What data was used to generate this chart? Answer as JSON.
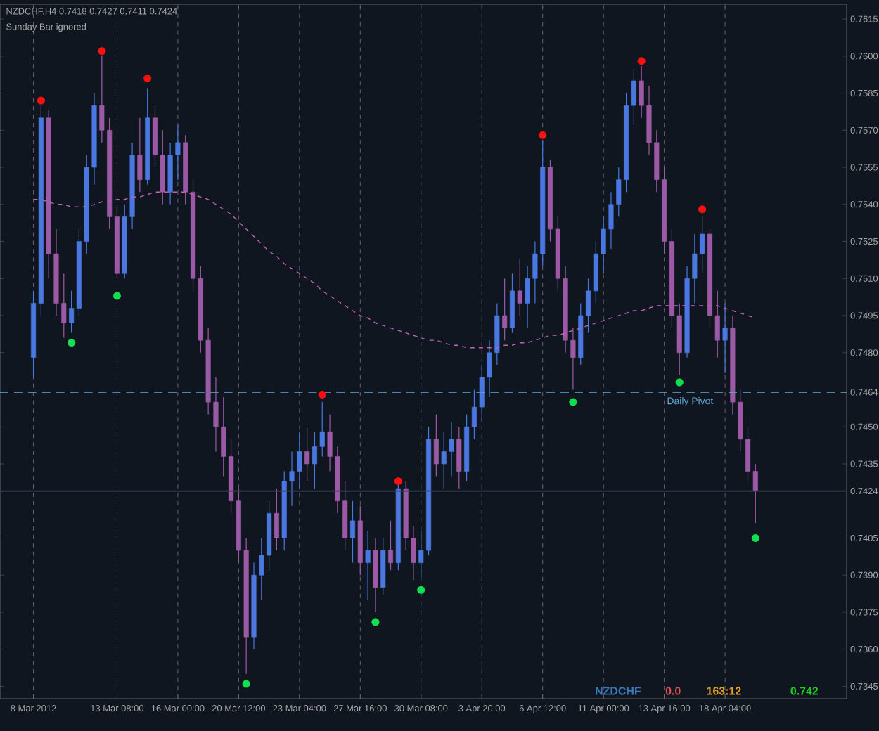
{
  "chart_data": {
    "type": "candlestick",
    "title": "NZDCHF,H4  0.7418 0.7427 0.7411 0.7424",
    "subtitle": "Sunday Bar ignored",
    "categories": [
      "8 Mar 2012",
      null,
      null,
      null,
      null,
      null,
      null,
      null,
      null,
      null,
      null,
      "13 Mar 08:00",
      null,
      null,
      null,
      null,
      null,
      null,
      null,
      "16 Mar 00:00",
      null,
      null,
      null,
      null,
      null,
      null,
      null,
      "20 Mar 12:00",
      null,
      null,
      null,
      null,
      null,
      null,
      null,
      "23 Mar 04:00",
      null,
      null,
      null,
      null,
      null,
      null,
      null,
      "27 Mar 16:00",
      null,
      null,
      null,
      null,
      null,
      null,
      null,
      "30 Mar 08:00",
      null,
      null,
      null,
      null,
      null,
      null,
      null,
      "3 Apr 20:00",
      null,
      null,
      null,
      null,
      null,
      null,
      null,
      "6 Apr 12:00",
      null,
      null,
      null,
      null,
      null,
      null,
      null,
      "11 Apr 00:00",
      null,
      null,
      null,
      null,
      null,
      null,
      null,
      "13 Apr 16:00",
      null,
      null,
      null,
      null,
      null,
      null,
      null,
      "18 Apr 04:00",
      null,
      null,
      null,
      null
    ],
    "ohlc": [
      [
        0.7478,
        0.7505,
        0.747,
        0.75
      ],
      [
        0.75,
        0.758,
        0.7495,
        0.7575
      ],
      [
        0.7575,
        0.7578,
        0.751,
        0.752
      ],
      [
        0.752,
        0.753,
        0.7495,
        0.75
      ],
      [
        0.75,
        0.7512,
        0.7486,
        0.7492
      ],
      [
        0.7492,
        0.7505,
        0.7488,
        0.7498
      ],
      [
        0.7498,
        0.753,
        0.7495,
        0.7525
      ],
      [
        0.7525,
        0.756,
        0.752,
        0.7555
      ],
      [
        0.7555,
        0.7585,
        0.7548,
        0.758
      ],
      [
        0.758,
        0.76,
        0.7565,
        0.757
      ],
      [
        0.757,
        0.7575,
        0.753,
        0.7535
      ],
      [
        0.7535,
        0.754,
        0.751,
        0.7512
      ],
      [
        0.7512,
        0.754,
        0.751,
        0.7535
      ],
      [
        0.7535,
        0.7565,
        0.753,
        0.756
      ],
      [
        0.756,
        0.7575,
        0.7545,
        0.755
      ],
      [
        0.755,
        0.7587,
        0.7548,
        0.7575
      ],
      [
        0.7575,
        0.758,
        0.7555,
        0.756
      ],
      [
        0.756,
        0.757,
        0.754,
        0.7545
      ],
      [
        0.7545,
        0.7565,
        0.754,
        0.756
      ],
      [
        0.756,
        0.7572,
        0.755,
        0.7565
      ],
      [
        0.7565,
        0.7568,
        0.754,
        0.7545
      ],
      [
        0.7545,
        0.755,
        0.7505,
        0.751
      ],
      [
        0.751,
        0.7515,
        0.748,
        0.7485
      ],
      [
        0.7485,
        0.749,
        0.7455,
        0.746
      ],
      [
        0.746,
        0.747,
        0.744,
        0.745
      ],
      [
        0.745,
        0.7462,
        0.743,
        0.7438
      ],
      [
        0.7438,
        0.7445,
        0.7415,
        0.742
      ],
      [
        0.742,
        0.7425,
        0.7395,
        0.74
      ],
      [
        0.74,
        0.7405,
        0.735,
        0.7365
      ],
      [
        0.7365,
        0.7395,
        0.736,
        0.739
      ],
      [
        0.739,
        0.7405,
        0.738,
        0.7398
      ],
      [
        0.7398,
        0.742,
        0.7392,
        0.7415
      ],
      [
        0.7415,
        0.7425,
        0.74,
        0.7405
      ],
      [
        0.7405,
        0.7432,
        0.74,
        0.7428
      ],
      [
        0.7428,
        0.744,
        0.7418,
        0.7432
      ],
      [
        0.7432,
        0.7448,
        0.7425,
        0.744
      ],
      [
        0.744,
        0.745,
        0.7428,
        0.7435
      ],
      [
        0.7435,
        0.7448,
        0.7425,
        0.7442
      ],
      [
        0.7442,
        0.746,
        0.7438,
        0.7448
      ],
      [
        0.7448,
        0.7455,
        0.7432,
        0.7438
      ],
      [
        0.7438,
        0.7442,
        0.7415,
        0.742
      ],
      [
        0.742,
        0.7428,
        0.74,
        0.7405
      ],
      [
        0.7405,
        0.742,
        0.7395,
        0.7412
      ],
      [
        0.7412,
        0.7418,
        0.739,
        0.7395
      ],
      [
        0.7395,
        0.7408,
        0.738,
        0.74
      ],
      [
        0.74,
        0.7405,
        0.7375,
        0.7385
      ],
      [
        0.7385,
        0.7405,
        0.7382,
        0.74
      ],
      [
        0.74,
        0.7412,
        0.7392,
        0.7395
      ],
      [
        0.7395,
        0.7427,
        0.7392,
        0.7425
      ],
      [
        0.7425,
        0.7428,
        0.74,
        0.7405
      ],
      [
        0.7405,
        0.741,
        0.7388,
        0.7395
      ],
      [
        0.7395,
        0.7408,
        0.7389,
        0.74
      ],
      [
        0.74,
        0.745,
        0.7398,
        0.7445
      ],
      [
        0.7445,
        0.7455,
        0.743,
        0.7435
      ],
      [
        0.7435,
        0.7448,
        0.7425,
        0.744
      ],
      [
        0.744,
        0.7452,
        0.743,
        0.7445
      ],
      [
        0.7445,
        0.745,
        0.7425,
        0.7432
      ],
      [
        0.7432,
        0.7455,
        0.7428,
        0.745
      ],
      [
        0.745,
        0.7465,
        0.7445,
        0.7458
      ],
      [
        0.7458,
        0.7475,
        0.7452,
        0.747
      ],
      [
        0.747,
        0.7485,
        0.7462,
        0.748
      ],
      [
        0.748,
        0.75,
        0.7475,
        0.7495
      ],
      [
        0.7495,
        0.751,
        0.7485,
        0.749
      ],
      [
        0.749,
        0.7512,
        0.7488,
        0.7505
      ],
      [
        0.7505,
        0.7518,
        0.7495,
        0.75
      ],
      [
        0.75,
        0.7515,
        0.749,
        0.751
      ],
      [
        0.751,
        0.7525,
        0.75,
        0.752
      ],
      [
        0.752,
        0.7566,
        0.7515,
        0.7555
      ],
      [
        0.7555,
        0.7558,
        0.7525,
        0.753
      ],
      [
        0.753,
        0.7535,
        0.7505,
        0.751
      ],
      [
        0.751,
        0.7515,
        0.748,
        0.7485
      ],
      [
        0.7485,
        0.749,
        0.7465,
        0.7478
      ],
      [
        0.7478,
        0.75,
        0.7475,
        0.7495
      ],
      [
        0.7495,
        0.751,
        0.7488,
        0.7505
      ],
      [
        0.7505,
        0.7525,
        0.75,
        0.752
      ],
      [
        0.752,
        0.7535,
        0.7512,
        0.753
      ],
      [
        0.753,
        0.7545,
        0.7522,
        0.754
      ],
      [
        0.754,
        0.7555,
        0.7535,
        0.755
      ],
      [
        0.755,
        0.7585,
        0.7545,
        0.758
      ],
      [
        0.758,
        0.7595,
        0.7572,
        0.759
      ],
      [
        0.759,
        0.7596,
        0.7575,
        0.758
      ],
      [
        0.758,
        0.7588,
        0.756,
        0.7565
      ],
      [
        0.7565,
        0.757,
        0.7545,
        0.755
      ],
      [
        0.755,
        0.7555,
        0.752,
        0.7525
      ],
      [
        0.7525,
        0.753,
        0.749,
        0.7495
      ],
      [
        0.7495,
        0.75,
        0.7471,
        0.748
      ],
      [
        0.748,
        0.7515,
        0.7478,
        0.751
      ],
      [
        0.751,
        0.7528,
        0.75,
        0.752
      ],
      [
        0.752,
        0.7535,
        0.7512,
        0.7528
      ],
      [
        0.7528,
        0.753,
        0.749,
        0.7495
      ],
      [
        0.7495,
        0.7505,
        0.7478,
        0.7485
      ],
      [
        0.7485,
        0.75,
        0.7472,
        0.749
      ],
      [
        0.749,
        0.7495,
        0.7455,
        0.746
      ],
      [
        0.746,
        0.7465,
        0.744,
        0.7445
      ],
      [
        0.7445,
        0.745,
        0.7428,
        0.7432
      ],
      [
        0.7432,
        0.7435,
        0.7411,
        0.7424
      ]
    ],
    "colors": [
      "#4a78e0",
      "#4a78e0",
      "#9c5aa6",
      "#9c5aa6",
      "#9c5aa6",
      "#4a78e0",
      "#4a78e0",
      "#4a78e0",
      "#4a78e0",
      "#9c5aa6",
      "#9c5aa6",
      "#9c5aa6",
      "#4a78e0",
      "#4a78e0",
      "#9c5aa6",
      "#4a78e0",
      "#9c5aa6",
      "#9c5aa6",
      "#4a78e0",
      "#4a78e0",
      "#9c5aa6",
      "#9c5aa6",
      "#9c5aa6",
      "#9c5aa6",
      "#9c5aa6",
      "#9c5aa6",
      "#9c5aa6",
      "#9c5aa6",
      "#9c5aa6",
      "#4a78e0",
      "#4a78e0",
      "#4a78e0",
      "#9c5aa6",
      "#4a78e0",
      "#4a78e0",
      "#4a78e0",
      "#9c5aa6",
      "#4a78e0",
      "#4a78e0",
      "#9c5aa6",
      "#9c5aa6",
      "#9c5aa6",
      "#4a78e0",
      "#9c5aa6",
      "#4a78e0",
      "#9c5aa6",
      "#4a78e0",
      "#9c5aa6",
      "#4a78e0",
      "#9c5aa6",
      "#9c5aa6",
      "#4a78e0",
      "#4a78e0",
      "#9c5aa6",
      "#4a78e0",
      "#4a78e0",
      "#9c5aa6",
      "#4a78e0",
      "#4a78e0",
      "#4a78e0",
      "#4a78e0",
      "#4a78e0",
      "#9c5aa6",
      "#4a78e0",
      "#9c5aa6",
      "#4a78e0",
      "#4a78e0",
      "#4a78e0",
      "#9c5aa6",
      "#9c5aa6",
      "#9c5aa6",
      "#9c5aa6",
      "#4a78e0",
      "#4a78e0",
      "#4a78e0",
      "#4a78e0",
      "#4a78e0",
      "#4a78e0",
      "#4a78e0",
      "#4a78e0",
      "#9c5aa6",
      "#9c5aa6",
      "#9c5aa6",
      "#9c5aa6",
      "#9c5aa6",
      "#9c5aa6",
      "#4a78e0",
      "#4a78e0",
      "#4a78e0",
      "#9c5aa6",
      "#9c5aa6",
      "#4a78e0",
      "#9c5aa6",
      "#9c5aa6",
      "#9c5aa6",
      "#9c5aa6"
    ],
    "series": [
      {
        "type": "line",
        "color": "#c060b8",
        "line_style": "dashed",
        "values": [
          0.7542,
          0.7542,
          0.7541,
          0.754,
          0.754,
          0.7539,
          0.7539,
          0.7539,
          0.754,
          0.7541,
          0.7541,
          0.7542,
          0.7542,
          0.7543,
          0.7543,
          0.7544,
          0.7545,
          0.7545,
          0.7545,
          0.7545,
          0.7545,
          0.7544,
          0.7543,
          0.7542,
          0.754,
          0.7538,
          0.7536,
          0.7533,
          0.753,
          0.7527,
          0.7524,
          0.7521,
          0.7519,
          0.7516,
          0.7514,
          0.7512,
          0.751,
          0.7508,
          0.7505,
          0.7503,
          0.7501,
          0.7499,
          0.7497,
          0.7495,
          0.7494,
          0.7492,
          0.7491,
          0.749,
          0.7489,
          0.7488,
          0.7487,
          0.7486,
          0.7485,
          0.7485,
          0.7484,
          0.7483,
          0.7483,
          0.7482,
          0.7482,
          0.7482,
          0.7482,
          0.7482,
          0.7483,
          0.7483,
          0.7484,
          0.7484,
          0.7485,
          0.7486,
          0.7487,
          0.7487,
          0.7488,
          0.7489,
          0.749,
          0.7491,
          0.7492,
          0.7493,
          0.7494,
          0.7495,
          0.7496,
          0.7497,
          0.7497,
          0.7498,
          0.7499,
          0.7499,
          0.7499,
          0.7499,
          0.7499,
          0.7499,
          0.7499,
          0.7499,
          0.7499,
          0.7498,
          0.7497,
          0.7496,
          0.7495,
          0.7494
        ]
      },
      {
        "type": "scatter",
        "color": "#ff1010",
        "marker": "circle",
        "values": [
          null,
          0.7582,
          null,
          null,
          null,
          null,
          null,
          null,
          null,
          0.7602,
          null,
          null,
          null,
          null,
          null,
          0.7591,
          null,
          null,
          null,
          null,
          null,
          null,
          null,
          null,
          null,
          null,
          null,
          null,
          null,
          null,
          null,
          null,
          null,
          null,
          null,
          null,
          null,
          null,
          0.7463,
          null,
          null,
          null,
          null,
          null,
          null,
          null,
          null,
          null,
          0.7428,
          null,
          null,
          null,
          null,
          null,
          null,
          null,
          null,
          null,
          null,
          null,
          null,
          null,
          null,
          null,
          null,
          null,
          null,
          0.7568,
          null,
          null,
          null,
          null,
          null,
          null,
          null,
          null,
          null,
          null,
          null,
          null,
          0.7598,
          null,
          null,
          null,
          null,
          null,
          null,
          null,
          0.7538,
          null,
          null,
          null,
          null,
          null,
          null,
          null
        ]
      },
      {
        "type": "scatter",
        "color": "#10e050",
        "marker": "circle",
        "values": [
          null,
          null,
          null,
          null,
          null,
          0.7484,
          null,
          null,
          null,
          null,
          null,
          0.7503,
          null,
          null,
          null,
          null,
          null,
          null,
          null,
          null,
          null,
          null,
          null,
          null,
          null,
          null,
          null,
          null,
          0.7346,
          null,
          null,
          null,
          null,
          null,
          null,
          null,
          null,
          null,
          null,
          null,
          null,
          null,
          null,
          null,
          null,
          0.7371,
          null,
          null,
          null,
          null,
          null,
          0.7384,
          null,
          null,
          null,
          null,
          null,
          null,
          null,
          null,
          null,
          null,
          null,
          null,
          null,
          null,
          null,
          null,
          null,
          null,
          null,
          0.746,
          null,
          null,
          null,
          null,
          null,
          null,
          null,
          null,
          null,
          null,
          null,
          null,
          null,
          0.7468,
          null,
          null,
          null,
          null,
          null,
          null,
          null,
          null,
          null,
          0.7405
        ]
      }
    ],
    "ylim": [
      0.734,
      0.7621
    ],
    "yticks": [
      0.7615,
      {
        "value": 0.76,
        "label": "0.7600"
      },
      0.7585,
      {
        "value": 0.757,
        "label": "0.7570"
      },
      0.7555,
      {
        "value": 0.754,
        "label": "0.7540"
      },
      0.7525,
      {
        "value": 0.751,
        "label": "0.7510"
      },
      0.7495,
      {
        "value": 0.748,
        "label": "0.7480"
      },
      0.7464,
      {
        "value": 0.745,
        "label": "0.7450"
      },
      0.7435,
      0.7424,
      0.7405,
      {
        "value": 0.739,
        "label": "0.7390"
      },
      0.7375,
      {
        "value": 0.736,
        "label": "0.7360"
      },
      0.7345
    ],
    "ref_lines": [
      {
        "axis": "y",
        "value": 0.7464,
        "label": "Daily Pivot",
        "color": "#5fa8d8",
        "line_style": "dashed"
      },
      {
        "axis": "y",
        "value": 0.7424,
        "color": "#3a4258",
        "line_style": "solid"
      }
    ],
    "annotations": [
      "NZDCHF",
      "0.0",
      "163:12",
      "0.742"
    ],
    "grid": "x"
  }
}
